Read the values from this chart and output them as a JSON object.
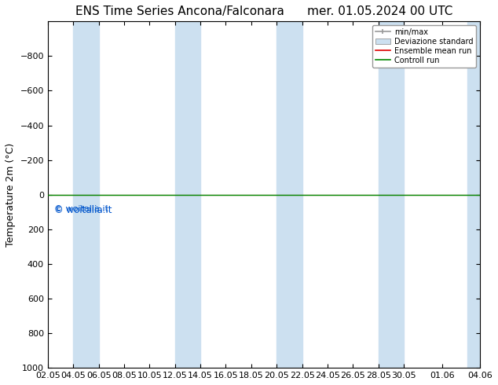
{
  "title_left": "ENS Time Series Ancona/Falconara",
  "title_right": "mer. 01.05.2024 00 UTC",
  "ylabel": "Temperature 2m (°C)",
  "watermark": "© woitalia.it",
  "ylim_bottom": 1000,
  "ylim_top": -1000,
  "yticks": [
    -800,
    -600,
    -400,
    -200,
    0,
    200,
    400,
    600,
    800,
    1000
  ],
  "x_start": 0,
  "x_end": 34,
  "xtick_labels": [
    "02.05",
    "04.05",
    "06.05",
    "08.05",
    "10.05",
    "12.05",
    "14.05",
    "16.05",
    "18.05",
    "20.05",
    "22.05",
    "24.05",
    "26.05",
    "28.05",
    "30.05",
    "01.06",
    "04.06"
  ],
  "xtick_positions": [
    0,
    2,
    4,
    6,
    8,
    10,
    12,
    14,
    16,
    18,
    20,
    22,
    24,
    26,
    28,
    31,
    34
  ],
  "shaded_bands": [
    [
      2,
      4
    ],
    [
      10,
      12
    ],
    [
      18,
      20
    ],
    [
      26,
      28
    ],
    [
      33,
      35
    ]
  ],
  "band_color": "#cce0f0",
  "control_run_y": 0,
  "ensemble_mean_y": 0,
  "control_run_color": "#008800",
  "ensemble_mean_color": "#dd0000",
  "watermark_color": "#0055cc",
  "bg_color": "#ffffff",
  "plot_bg_color": "#ffffff",
  "legend_items": [
    "min/max",
    "Deviazione standard",
    "Ensemble mean run",
    "Controll run"
  ],
  "title_fontsize": 11,
  "axis_fontsize": 9,
  "tick_fontsize": 8
}
